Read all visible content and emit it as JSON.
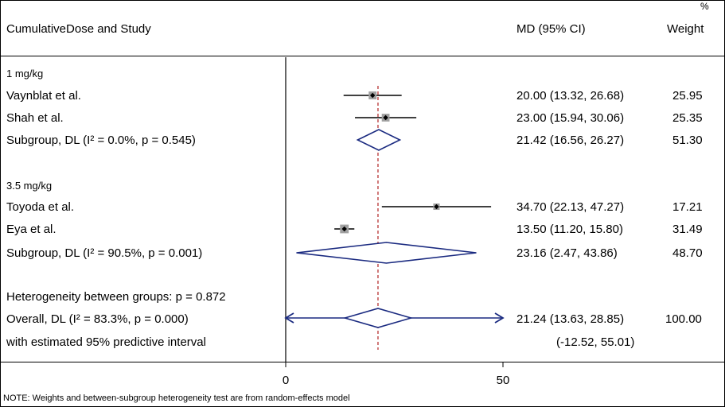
{
  "header": {
    "study_col": "CumulativeDose and Study",
    "md_col": "MD (95% CI)",
    "weight_pct": "%",
    "weight_col": "Weight"
  },
  "note": "NOTE: Weights and between-subgroup heterogeneity test are from random-effects model",
  "colors": {
    "refline": "#b22222",
    "diamond": "#1a2a80",
    "ci": "#000000",
    "box": "#a0a0a0"
  },
  "chart_data": {
    "type": "forest",
    "xlim": [
      0,
      50
    ],
    "xticks": [
      0,
      50
    ],
    "overall_effect": 21.24,
    "groups": [
      {
        "label": "1 mg/kg",
        "studies": [
          {
            "name": "Vaynblat et al.",
            "md": 20.0,
            "lo": 13.32,
            "hi": 26.68,
            "ci_text": "20.00 (13.32, 26.68)",
            "weight": "25.95",
            "w": 25.95
          },
          {
            "name": "Shah et al.",
            "md": 23.0,
            "lo": 15.94,
            "hi": 30.06,
            "ci_text": "23.00 (15.94, 30.06)",
            "weight": "25.35",
            "w": 25.35
          }
        ],
        "subgroup": {
          "label": "Subgroup, DL (I² = 0.0%, p = 0.545)",
          "md": 21.42,
          "lo": 16.56,
          "hi": 26.27,
          "ci_text": "21.42 (16.56, 26.27)",
          "weight": "51.30"
        }
      },
      {
        "label": "3.5 mg/kg",
        "studies": [
          {
            "name": "Toyoda et al.",
            "md": 34.7,
            "lo": 22.13,
            "hi": 47.27,
            "ci_text": "34.70 (22.13, 47.27)",
            "weight": "17.21",
            "w": 17.21
          },
          {
            "name": "Eya et al.",
            "md": 13.5,
            "lo": 11.2,
            "hi": 15.8,
            "ci_text": "13.50 (11.20, 15.80)",
            "weight": "31.49",
            "w": 31.49
          }
        ],
        "subgroup": {
          "label": "Subgroup, DL (I² = 90.5%, p = 0.001)",
          "md": 23.16,
          "lo": 2.47,
          "hi": 43.86,
          "ci_text": "23.16 (2.47, 43.86)",
          "weight": "48.70"
        }
      }
    ],
    "heterogeneity": "Heterogeneity between groups: p = 0.872",
    "overall": {
      "label": "Overall, DL (I² = 83.3%, p = 0.000)",
      "md": 21.24,
      "lo": 13.63,
      "hi": 28.85,
      "ci_text": "21.24 (13.63, 28.85)",
      "weight": "100.00"
    },
    "predictive": {
      "label": "with estimated 95% predictive interval",
      "lo": -12.52,
      "hi": 55.01,
      "ci_text": "(-12.52, 55.01)"
    }
  }
}
